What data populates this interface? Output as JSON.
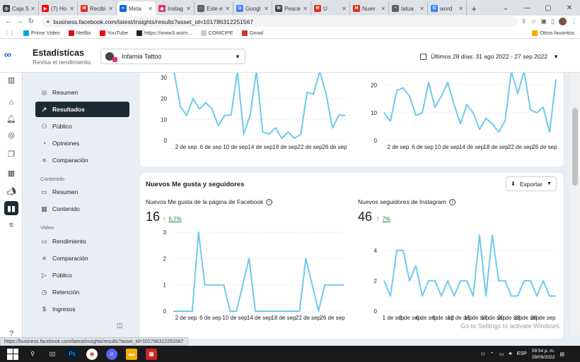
{
  "browser": {
    "tabs": [
      {
        "label": "Caja S",
        "color": "#3c4043",
        "glyph": "◎"
      },
      {
        "label": "(7) Ho",
        "color": "#ff0000",
        "glyph": "▶"
      },
      {
        "label": "Recibi",
        "color": "#d93025",
        "glyph": "M"
      },
      {
        "label": "Meta",
        "color": "#0668e1",
        "glyph": "∞",
        "active": true
      },
      {
        "label": "Instag",
        "color": "#e1306c",
        "glyph": "◉"
      },
      {
        "label": "Este e",
        "color": "#5f6368",
        "glyph": "◌"
      },
      {
        "label": "Googl",
        "color": "#4285f4",
        "glyph": "G"
      },
      {
        "label": "Peace",
        "color": "#444444",
        "glyph": "W"
      },
      {
        "label": "U",
        "color": "#d93025",
        "glyph": "M"
      },
      {
        "label": "Nuev",
        "color": "#d93025",
        "glyph": "M"
      },
      {
        "label": "tatua",
        "color": "#5f6368",
        "glyph": "~"
      },
      {
        "label": "word",
        "color": "#4285f4",
        "glyph": "G"
      }
    ],
    "new_tab": "+",
    "url": "business.facebook.com/latest/insights/results?asset_id=101786312251567",
    "bookmarks": [
      {
        "label": "Prime Video",
        "color": "#00a8e1"
      },
      {
        "label": "Netflix",
        "color": "#e50914"
      },
      {
        "label": "YouTube",
        "color": "#ff0000"
      },
      {
        "label": "https://www3.anim...",
        "color": "#222222"
      },
      {
        "label": "COMCIPE",
        "color": "#cccccc"
      },
      {
        "label": "Gmail",
        "color": "#d93025"
      }
    ],
    "other_bookmarks": "Otros favoritos",
    "status_url": "https://business.facebook.com/latest/insights/results?asset_id=101786312251567"
  },
  "header": {
    "title": "Estadísticas",
    "subtitle": "Revisa el rendimiento.",
    "account": "Infamia Tattoo",
    "date_range": "Últimos 28 días: 31 ago 2022 - 27 sep 2022"
  },
  "sidebar": {
    "items": [
      {
        "label": "Resumen",
        "icon": "◎"
      },
      {
        "label": "Resultados",
        "icon": "↗",
        "active": true
      },
      {
        "label": "Público",
        "icon": "⚇"
      },
      {
        "label": "Opiniones",
        "icon": "◔"
      },
      {
        "label": "Comparación",
        "icon": "≡"
      }
    ],
    "content_section": "Contenido",
    "content_items": [
      {
        "label": "Resumen",
        "icon": "▭"
      },
      {
        "label": "Contenido",
        "icon": "▦"
      }
    ],
    "video_section": "Video",
    "video_items": [
      {
        "label": "Rendimiento",
        "icon": "▭"
      },
      {
        "label": "Comparación",
        "icon": "≡"
      },
      {
        "label": "Público",
        "icon": "▷"
      },
      {
        "label": "Retención",
        "icon": "◷"
      },
      {
        "label": "Ingresos",
        "icon": "$"
      }
    ]
  },
  "followers_card": {
    "title": "Nuevos Me gusta y seguidores",
    "export_label": "Exportar",
    "facebook": {
      "label": "Nuevos Me gusta de la página de Facebook",
      "value": "16",
      "delta": "6.7%"
    },
    "instagram": {
      "label": "Nuevos seguidores de Instagram",
      "value": "46",
      "delta": "7%"
    }
  },
  "watermark": "Go to Settings to activate Windows.",
  "taskbar": {
    "time": "09:54 p. m.",
    "date": "28/09/2022",
    "lang": "ESP"
  },
  "chart_data": [
    {
      "type": "line",
      "color": "#6ecaed",
      "x": [
        "1 sep",
        "2 sep",
        "3 sep",
        "4 sep",
        "5 sep",
        "6 sep",
        "7 sep",
        "8 sep",
        "9 sep",
        "10 sep",
        "11 sep",
        "12 sep",
        "13 sep",
        "14 sep",
        "15 sep",
        "16 sep",
        "17 sep",
        "18 sep",
        "19 sep",
        "20 sep",
        "21 sep",
        "22 sep",
        "23 sep",
        "24 sep",
        "25 sep",
        "26 sep",
        "27 sep",
        "28 sep"
      ],
      "values": [
        33,
        16,
        12,
        20,
        15,
        18,
        15,
        7,
        12,
        12,
        33,
        3,
        12,
        33,
        4,
        3,
        6,
        1,
        4,
        1,
        3,
        23,
        22,
        33,
        22,
        6,
        12,
        12
      ],
      "tick_labels": [
        "2 de sep",
        "6 de sep",
        "10 de sep",
        "14 de sep",
        "18 de sep",
        "22 de sep",
        "26 de sep"
      ],
      "y_ticks": [
        0,
        10,
        20,
        30
      ],
      "ylim": [
        0,
        33
      ]
    },
    {
      "type": "line",
      "color": "#6ecaed",
      "x": [
        "1 sep",
        "2 sep",
        "3 sep",
        "4 sep",
        "5 sep",
        "6 sep",
        "7 sep",
        "8 sep",
        "9 sep",
        "10 sep",
        "11 sep",
        "12 sep",
        "13 sep",
        "14 sep",
        "15 sep",
        "16 sep",
        "17 sep",
        "18 sep",
        "19 sep",
        "20 sep",
        "21 sep",
        "22 sep",
        "23 sep",
        "24 sep",
        "25 sep",
        "26 sep",
        "27 sep",
        "28 sep"
      ],
      "values": [
        10,
        7,
        18,
        19,
        16,
        9,
        10,
        21,
        12,
        16,
        21,
        13,
        6,
        13,
        10,
        4,
        8,
        6,
        3,
        7,
        25,
        17,
        25,
        11,
        10,
        12,
        3,
        22
      ],
      "tick_labels": [
        "2 de sep",
        "6 de sep",
        "10 de sep",
        "14 de sep",
        "18 de sep",
        "22 de sep",
        "26 de sep"
      ],
      "y_ticks": [
        0,
        10,
        20
      ],
      "ylim": [
        0,
        25
      ]
    },
    {
      "type": "line",
      "color": "#6ecaed",
      "x": [
        "1 sep",
        "2 sep",
        "3 sep",
        "4 sep",
        "5 sep",
        "6 sep",
        "7 sep",
        "8 sep",
        "9 sep",
        "10 sep",
        "11 sep",
        "12 sep",
        "13 sep",
        "14 sep",
        "15 sep",
        "16 sep",
        "17 sep",
        "18 sep",
        "19 sep",
        "20 sep",
        "21 sep",
        "22 sep",
        "23 sep",
        "24 sep",
        "25 sep",
        "26 sep",
        "27 sep",
        "28 sep"
      ],
      "values": [
        0,
        0,
        0,
        0,
        3,
        1,
        1,
        1,
        1,
        0,
        0,
        1,
        2,
        0,
        0,
        0,
        0,
        0,
        0,
        0,
        0,
        2,
        1,
        0,
        1,
        1,
        1,
        1
      ],
      "tick_labels": [
        "2 de sep",
        "6 de sep",
        "10 de sep",
        "14 de sep",
        "18 de sep",
        "22 de sep",
        "26 de sep"
      ],
      "y_ticks": [
        0,
        1,
        2,
        3
      ],
      "ylim": [
        0,
        3
      ]
    },
    {
      "type": "line",
      "color": "#6ecaed",
      "x": [
        "1 sep",
        "2 sep",
        "3 sep",
        "4 sep",
        "5 sep",
        "6 sep",
        "7 sep",
        "8 sep",
        "9 sep",
        "10 sep",
        "11 sep",
        "12 sep",
        "13 sep",
        "14 sep",
        "15 sep",
        "16 sep",
        "17 sep",
        "18 sep",
        "19 sep",
        "20 sep",
        "21 sep",
        "22 sep",
        "23 sep",
        "24 sep",
        "25 sep",
        "26 sep",
        "27 sep",
        "28 sep"
      ],
      "values": [
        2,
        1,
        4,
        4,
        2,
        3,
        1,
        2,
        2,
        1,
        2,
        1,
        2,
        2,
        1,
        5,
        1,
        5,
        2,
        2,
        1,
        1,
        2,
        2,
        1,
        2,
        1,
        1
      ],
      "tick_labels": [
        "1 de sep",
        "3 de sep",
        "6 de sep",
        "9 de sep",
        "12 de sep",
        "15 de sep",
        "17 de sep",
        "20 de sep",
        "23 de sep",
        "26 de sep"
      ],
      "y_ticks": [
        0,
        2,
        4
      ],
      "ylim": [
        0,
        5.2
      ]
    }
  ]
}
